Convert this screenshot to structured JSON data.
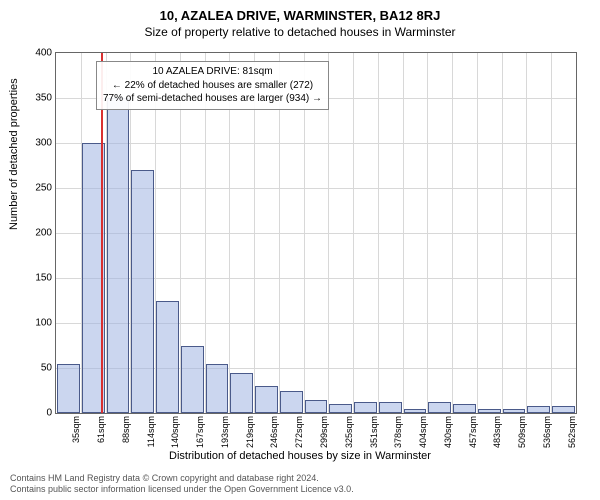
{
  "title_main": "10, AZALEA DRIVE, WARMINSTER, BA12 8RJ",
  "title_sub": "Size of property relative to detached houses in Warminster",
  "chart": {
    "type": "bar",
    "y_label": "Number of detached properties",
    "x_label": "Distribution of detached houses by size in Warminster",
    "ylim": [
      0,
      400
    ],
    "ytick_step": 50,
    "yticks": [
      0,
      50,
      100,
      150,
      200,
      250,
      300,
      350,
      400
    ],
    "x_categories": [
      "35sqm",
      "61sqm",
      "88sqm",
      "114sqm",
      "140sqm",
      "167sqm",
      "193sqm",
      "219sqm",
      "246sqm",
      "272sqm",
      "299sqm",
      "325sqm",
      "351sqm",
      "378sqm",
      "404sqm",
      "430sqm",
      "457sqm",
      "483sqm",
      "509sqm",
      "536sqm",
      "562sqm"
    ],
    "values": [
      55,
      300,
      350,
      270,
      125,
      75,
      55,
      45,
      30,
      25,
      15,
      10,
      12,
      12,
      5,
      12,
      10,
      5,
      5,
      8,
      8
    ],
    "bar_fill": "rgba(160,180,225,0.55)",
    "bar_border": "#4a5a8a",
    "marker_position_index": 1.8,
    "marker_color": "#d93030",
    "grid_color": "#d8d8d8",
    "background_color": "#ffffff"
  },
  "info_box": {
    "line1": "10 AZALEA DRIVE: 81sqm",
    "line2": "← 22% of detached houses are smaller (272)",
    "line3": "77% of semi-detached houses are larger (934) →"
  },
  "footer": {
    "line1": "Contains HM Land Registry data © Crown copyright and database right 2024.",
    "line2": "Contains public sector information licensed under the Open Government Licence v3.0."
  }
}
